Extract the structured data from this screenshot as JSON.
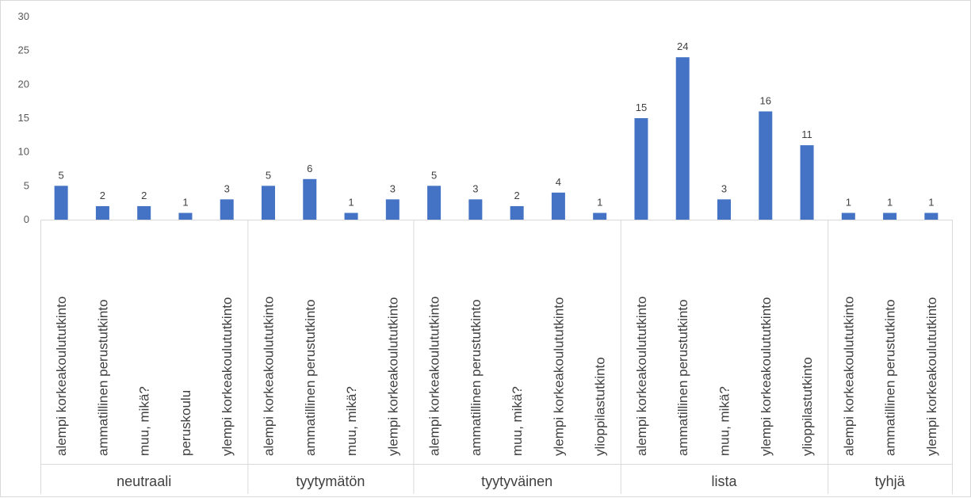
{
  "chart_data": {
    "type": "bar",
    "title": "",
    "xlabel": "",
    "ylabel": "",
    "ylim": [
      0,
      30
    ],
    "yticks": [
      0,
      5,
      10,
      15,
      20,
      25,
      30
    ],
    "grid": false,
    "legend": "none",
    "bar_color": "#4472c4",
    "groups": [
      {
        "name": "neutraali",
        "categories": [
          "alempi korkeakoulututkinto",
          "ammatillinen perustutkinto",
          "muu, mikä?",
          "peruskoulu",
          "ylempi korkeakoulututkinto"
        ],
        "values": [
          5,
          2,
          2,
          1,
          3
        ]
      },
      {
        "name": "tyytymätön",
        "categories": [
          "alempi korkeakoulututkinto",
          "ammatillinen perustutkinto",
          "muu, mikä?",
          "ylempi korkeakoulututkinto"
        ],
        "values": [
          5,
          6,
          1,
          3
        ]
      },
      {
        "name": "tyytyväinen",
        "categories": [
          "alempi korkeakoulututkinto",
          "ammatillinen perustutkinto",
          "muu, mikä?",
          "ylempi korkeakoulututkinto",
          "ylioppilastutkinto"
        ],
        "values": [
          5,
          3,
          2,
          4,
          1
        ]
      },
      {
        "name": "lista",
        "categories": [
          "alempi korkeakoulututkinto",
          "ammatillinen perustutkinto",
          "muu, mikä?",
          "ylempi korkeakoulututkinto",
          "ylioppilastutkinto"
        ],
        "values": [
          15,
          24,
          3,
          16,
          11
        ]
      },
      {
        "name": "tyhjä",
        "categories": [
          "alempi korkeakoulututkinto",
          "ammatillinen perustutkinto",
          "ylempi korkeakoulututkinto"
        ],
        "values": [
          1,
          1,
          1
        ]
      }
    ]
  }
}
